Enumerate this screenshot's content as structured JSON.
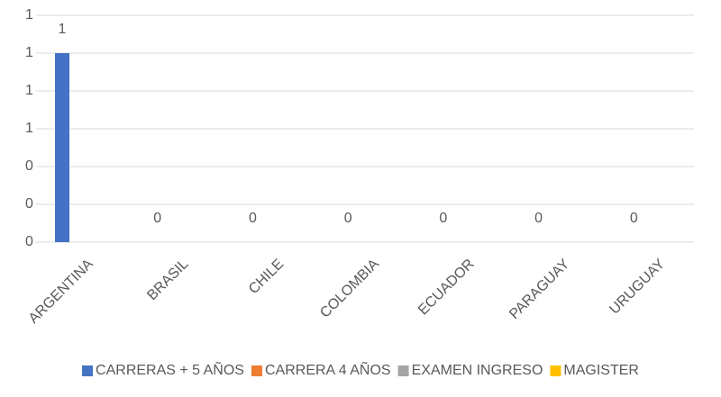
{
  "chart_data": {
    "type": "bar",
    "categories": [
      "ARGENTINA",
      "BRASIL",
      "CHILE",
      "COLOMBIA",
      "ECUADOR",
      "PARAGUAY",
      "URUGUAY"
    ],
    "series": [
      {
        "name": "CARRERAS + 5 AÑOS",
        "color": "#4472c4",
        "values": [
          1,
          0,
          0,
          0,
          0,
          0,
          0
        ]
      },
      {
        "name": "CARRERA 4 AÑOS",
        "color": "#ed7d31",
        "values": [
          null,
          null,
          null,
          null,
          null,
          null,
          null
        ]
      },
      {
        "name": "EXAMEN INGRESO",
        "color": "#a5a5a5",
        "values": [
          null,
          null,
          null,
          null,
          null,
          null,
          null
        ]
      },
      {
        "name": "MAGISTER",
        "color": "#ffc000",
        "values": [
          null,
          null,
          null,
          null,
          null,
          null,
          null
        ]
      }
    ],
    "ylim": [
      0,
      1.2
    ],
    "yticks": [
      0,
      {
        "value": 0.2,
        "label": "0"
      },
      {
        "value": 0.4,
        "label": "0"
      },
      {
        "value": 0.6,
        "label": "1"
      },
      {
        "value": 0.8,
        "label": "1"
      },
      1,
      {
        "value": 1.2,
        "label": "1"
      }
    ],
    "grid": true,
    "legend": "bottom"
  }
}
